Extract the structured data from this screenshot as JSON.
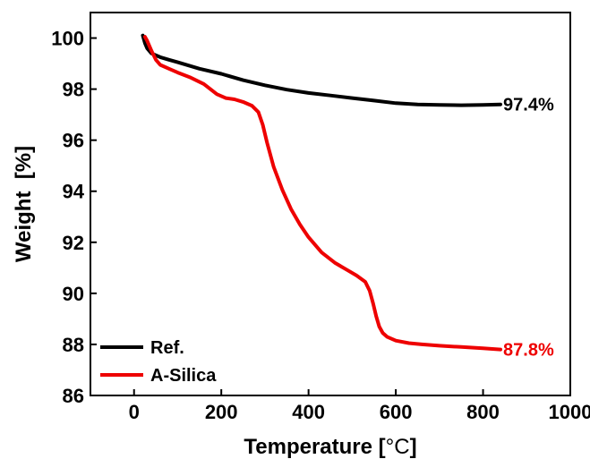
{
  "chart_data": {
    "type": "line",
    "title": "",
    "xlabel": "Temperature [",
    "xlabel_unit": "°C",
    "xlabel_close": "]",
    "ylabel": "Weight  [%]",
    "xlim": [
      -100,
      1000
    ],
    "ylim": [
      86,
      101
    ],
    "x_ticks": [
      0,
      200,
      400,
      600,
      800,
      1000
    ],
    "y_ticks": [
      86,
      88,
      90,
      92,
      94,
      96,
      98,
      100
    ],
    "legend_position": "bottom-left",
    "grid": false,
    "series": [
      {
        "name": "Ref.",
        "color": "#000000",
        "x": [
          20,
          25,
          30,
          40,
          60,
          80,
          100,
          150,
          200,
          250,
          300,
          350,
          400,
          450,
          500,
          550,
          600,
          650,
          700,
          750,
          800,
          840
        ],
        "y": [
          100.1,
          99.8,
          99.6,
          99.4,
          99.25,
          99.15,
          99.05,
          98.8,
          98.6,
          98.35,
          98.15,
          97.98,
          97.85,
          97.75,
          97.65,
          97.55,
          97.45,
          97.4,
          97.38,
          97.37,
          97.38,
          97.4
        ],
        "end_label": "97.4%"
      },
      {
        "name": "A-Silica",
        "color": "#ee0000",
        "x": [
          25,
          30,
          40,
          50,
          60,
          80,
          100,
          130,
          160,
          190,
          210,
          230,
          250,
          270,
          285,
          295,
          305,
          320,
          340,
          360,
          380,
          400,
          430,
          460,
          490,
          510,
          530,
          540,
          548,
          555,
          562,
          570,
          580,
          600,
          630,
          660,
          700,
          750,
          800,
          840
        ],
        "y": [
          100.05,
          99.9,
          99.5,
          99.15,
          98.95,
          98.8,
          98.65,
          98.45,
          98.2,
          97.8,
          97.65,
          97.6,
          97.5,
          97.35,
          97.1,
          96.6,
          95.9,
          94.95,
          94.05,
          93.3,
          92.7,
          92.2,
          91.6,
          91.2,
          90.9,
          90.7,
          90.45,
          90.1,
          89.6,
          89.1,
          88.7,
          88.45,
          88.3,
          88.15,
          88.05,
          88.0,
          87.95,
          87.9,
          87.85,
          87.8
        ],
        "end_label": "87.8%"
      }
    ]
  }
}
